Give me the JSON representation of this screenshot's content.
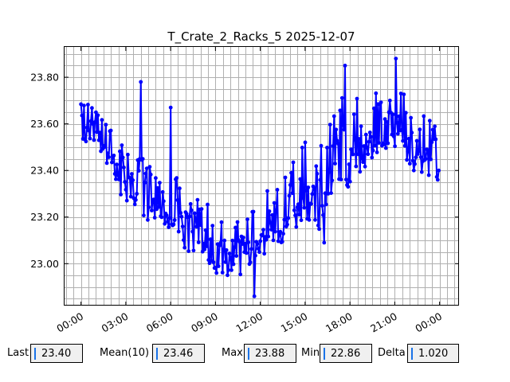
{
  "chart_data": {
    "type": "line",
    "title": "T_Crate_2_Racks_5 2025-12-07",
    "xlabel": "",
    "ylabel": "",
    "x_tick_labels": [
      "00:00",
      "03:00",
      "06:00",
      "09:00",
      "12:00",
      "15:00",
      "18:00",
      "21:00",
      "00:00"
    ],
    "y_tick_labels": [
      "23.00",
      "23.20",
      "23.40",
      "23.60",
      "23.80"
    ],
    "y_ticks": [
      23.0,
      23.2,
      23.4,
      23.6,
      23.8
    ],
    "xlim_hours": [
      -1.1,
      25.3
    ],
    "ylim": [
      22.82,
      23.93
    ],
    "grid": true,
    "series": [
      {
        "color": "#0000ff",
        "x_hours": [
          0.0,
          0.5,
          1.0,
          1.5,
          2.0,
          2.5,
          3.0,
          3.5,
          4.0,
          4.5,
          5.0,
          5.5,
          6.0,
          6.5,
          7.0,
          7.5,
          8.0,
          8.5,
          9.0,
          9.5,
          10.0,
          10.5,
          11.0,
          11.5,
          12.0,
          12.5,
          13.0,
          13.5,
          14.0,
          14.5,
          15.0,
          15.5,
          16.0,
          16.5,
          17.0,
          17.5,
          18.0,
          18.5,
          19.0,
          19.5,
          20.0,
          20.5,
          21.0,
          21.5,
          22.0,
          22.5,
          23.0,
          23.5,
          24.0
        ],
        "mean": [
          23.6,
          23.6,
          23.58,
          23.54,
          23.48,
          23.42,
          23.36,
          23.33,
          23.3,
          23.27,
          23.24,
          23.24,
          23.22,
          23.2,
          23.18,
          23.14,
          23.12,
          23.1,
          23.06,
          23.04,
          23.04,
          23.06,
          23.08,
          23.1,
          23.12,
          23.14,
          23.18,
          23.2,
          23.24,
          23.27,
          23.3,
          23.32,
          23.34,
          23.38,
          23.42,
          23.46,
          23.48,
          23.52,
          23.54,
          23.56,
          23.58,
          23.6,
          23.6,
          23.56,
          23.5,
          23.48,
          23.48,
          23.47,
          23.46
        ],
        "low": [
          23.49,
          23.48,
          23.5,
          23.45,
          23.38,
          23.3,
          23.22,
          23.2,
          23.18,
          23.15,
          23.15,
          23.16,
          23.14,
          23.08,
          23.04,
          23.03,
          23.0,
          22.99,
          22.94,
          22.93,
          22.9,
          22.92,
          22.95,
          22.98,
          23.02,
          23.03,
          23.06,
          23.08,
          23.12,
          23.14,
          23.16,
          23.18,
          23.09,
          23.24,
          23.26,
          23.28,
          23.3,
          23.36,
          23.4,
          23.44,
          23.46,
          23.47,
          23.47,
          23.42,
          23.4,
          23.38,
          23.36,
          23.35,
          23.33
        ],
        "high": [
          23.7,
          23.72,
          23.74,
          23.72,
          23.64,
          23.58,
          23.5,
          23.46,
          23.48,
          23.45,
          23.42,
          23.4,
          23.67,
          23.38,
          23.32,
          23.3,
          23.3,
          23.28,
          23.24,
          23.2,
          23.21,
          23.2,
          23.21,
          23.3,
          23.32,
          23.34,
          23.38,
          23.42,
          23.46,
          23.52,
          23.57,
          23.55,
          23.6,
          23.7,
          23.76,
          23.78,
          23.82,
          23.85,
          23.75,
          23.84,
          23.84,
          23.72,
          23.74,
          23.88,
          23.66,
          23.62,
          23.73,
          23.66,
          23.64
        ],
        "min": 22.86,
        "max": 23.88,
        "last": 23.4,
        "spikes": [
          {
            "x_hours": 4.0,
            "y": 23.78
          },
          {
            "x_hours": 6.0,
            "y": 23.67
          },
          {
            "x_hours": 11.6,
            "y": 22.86
          },
          {
            "x_hours": 16.3,
            "y": 23.09
          },
          {
            "x_hours": 17.7,
            "y": 23.85
          },
          {
            "x_hours": 21.1,
            "y": 23.88
          }
        ]
      }
    ]
  },
  "stats": {
    "last_label": "Last",
    "last_value": "23.40",
    "mean_label": "Mean(10)",
    "mean_value": "23.46",
    "max_label": "Max",
    "max_value": "23.88",
    "min_label": "Min",
    "min_value": "22.86",
    "delta_label": "Delta",
    "delta_value": "1.020"
  }
}
